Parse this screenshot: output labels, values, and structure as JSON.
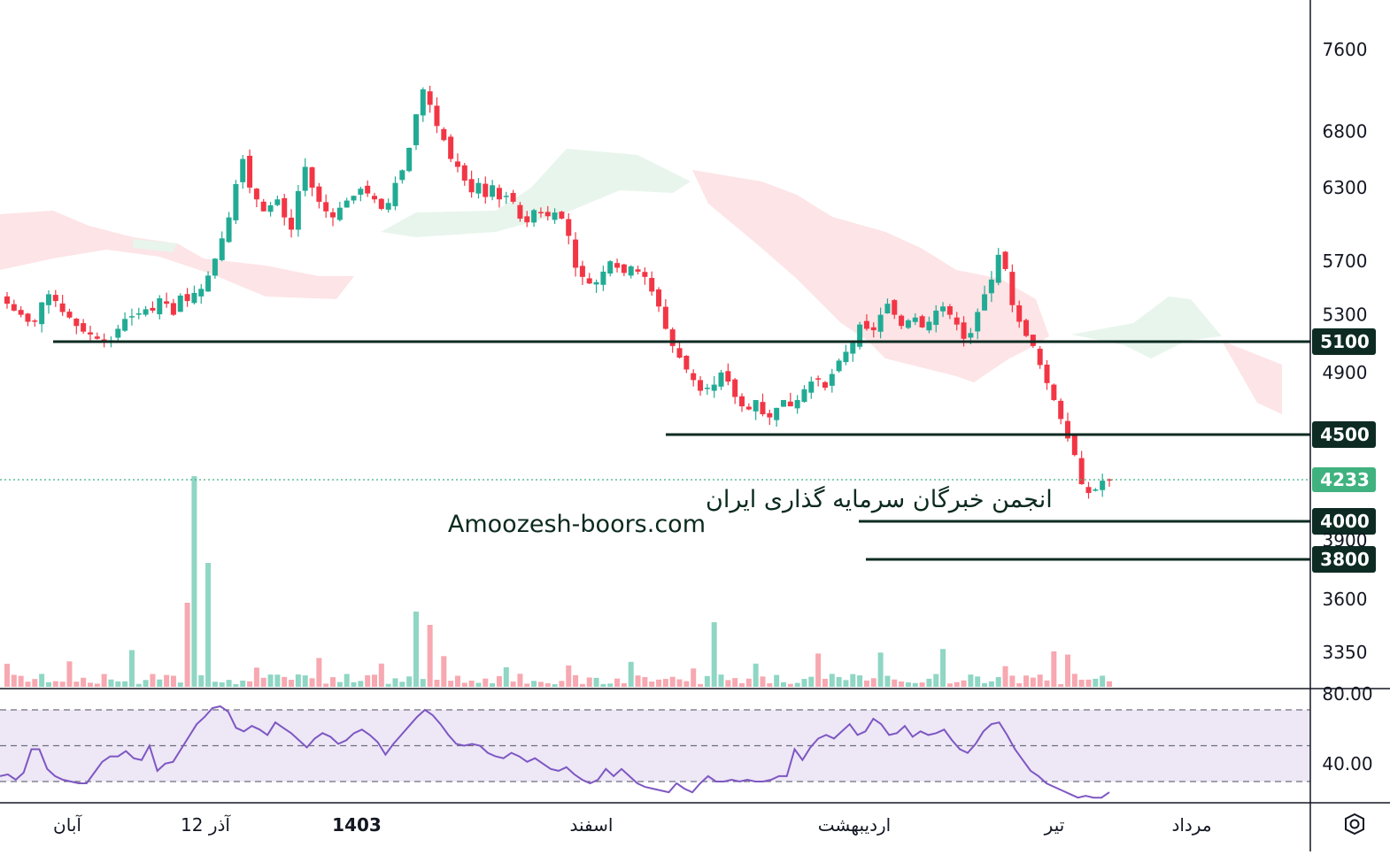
{
  "watermark": {
    "line1": "انجمن خبرگان سرمایه گذاری ایران",
    "line2": "Amoozesh-boors.com"
  },
  "colors": {
    "up": "#22ab94",
    "down": "#f23645",
    "volume_up": "#8fd6c4",
    "volume_down": "#f7a8b0",
    "cloud_bull": "#e8f5ec",
    "cloud_bear": "#fde4e6",
    "rsi_line": "#7e57c2",
    "rsi_band": "#ede7f6",
    "level_line": "#0d2b22",
    "last_price": "#3fb27f"
  },
  "chart_data": {
    "type": "candlestick",
    "y_axis": {
      "scale": "log",
      "ticks": [
        "7600",
        "6800",
        "6300",
        "5700",
        "5300",
        "4900",
        "3900",
        "3600",
        "3350"
      ],
      "range": [
        3250,
        8100
      ]
    },
    "x_axis": {
      "labels": [
        {
          "text": "آبان",
          "bold": false
        },
        {
          "text": "12 آذر",
          "bold": false
        },
        {
          "text": "1403",
          "bold": true
        },
        {
          "text": "اسفند",
          "bold": false
        },
        {
          "text": "اردیبهشت",
          "bold": false
        },
        {
          "text": "تیر",
          "bold": false
        },
        {
          "text": "مرداد",
          "bold": false
        }
      ]
    },
    "last_price": "4233",
    "levels": [
      "5100",
      "4500",
      "4000",
      "3800"
    ],
    "close_estimates": [
      5380,
      5330,
      5300,
      5250,
      5250,
      5390,
      5450,
      5400,
      5320,
      5280,
      5220,
      5180,
      5160,
      5130,
      5110,
      5120,
      5200,
      5270,
      5290,
      5310,
      5340,
      5330,
      5420,
      5380,
      5300,
      5440,
      5400,
      5460,
      5490,
      5590,
      5720,
      5880,
      6050,
      6330,
      6550,
      6300,
      6200,
      6100,
      6150,
      6200,
      6050,
      5950,
      6270,
      6480,
      6300,
      6180,
      6100,
      6050,
      6130,
      6190,
      6230,
      6290,
      6250,
      6200,
      6120,
      6170,
      6340,
      6450,
      6650,
      6960,
      7200,
      7050,
      6850,
      6720,
      6550,
      6480,
      6360,
      6260,
      6340,
      6220,
      6320,
      6200,
      6230,
      6180,
      6040,
      6010,
      6110,
      6090,
      6060,
      6090,
      6040,
      5900,
      5650,
      5580,
      5530,
      5540,
      5620,
      5700,
      5650,
      5610,
      5660,
      5620,
      5580,
      5470,
      5360,
      5200,
      5080,
      5000,
      4920,
      4850,
      4780,
      4800,
      4820,
      4900,
      4840,
      4740,
      4680,
      4660,
      4720,
      4630,
      4610,
      4670,
      4720,
      4680,
      4720,
      4790,
      4840,
      4860,
      4800,
      4890,
      4980,
      5040,
      5100,
      5230,
      5200,
      5190,
      5300,
      5380,
      5300,
      5220,
      5260,
      5280,
      5210,
      5250,
      5330,
      5360,
      5300,
      5230,
      5130,
      5170,
      5320,
      5450,
      5560,
      5750,
      5640,
      5370,
      5250,
      5150,
      5080,
      4950,
      4830,
      4720,
      4600,
      4480,
      4380,
      4210,
      4160,
      4180,
      4230,
      4233
    ],
    "volume_note": "Volume histogram shown below price; tallest bar near 12 آذر",
    "rsi": {
      "guide_ticks": [
        "80.00",
        "40.00"
      ],
      "values": [
        33,
        34,
        31,
        35,
        48,
        48,
        37,
        33,
        31,
        30,
        29,
        29,
        35,
        41,
        44,
        44,
        47,
        43,
        42,
        50,
        36,
        40,
        41,
        48,
        55,
        62,
        66,
        71,
        72,
        69,
        60,
        58,
        61,
        59,
        56,
        63,
        60,
        57,
        53,
        49,
        54,
        57,
        55,
        51,
        53,
        57,
        59,
        56,
        52,
        45,
        51,
        56,
        61,
        66,
        70,
        67,
        62,
        56,
        51,
        50,
        51,
        50,
        46,
        44,
        43,
        46,
        44,
        41,
        43,
        40,
        37,
        36,
        38,
        34,
        31,
        29,
        31,
        37,
        33,
        37,
        33,
        29,
        27,
        26,
        25,
        24,
        29,
        26,
        24,
        29,
        33,
        30,
        30,
        31,
        30,
        31,
        30,
        30,
        31,
        33,
        33,
        48,
        42,
        49,
        54,
        56,
        54,
        58,
        62,
        56,
        58,
        65,
        62,
        56,
        57,
        61,
        55,
        58,
        56,
        57,
        59,
        53,
        48,
        46,
        51,
        58,
        62,
        63,
        56,
        48,
        42,
        36,
        33,
        29,
        27,
        25,
        23,
        21,
        22,
        21,
        21,
        24
      ]
    }
  }
}
